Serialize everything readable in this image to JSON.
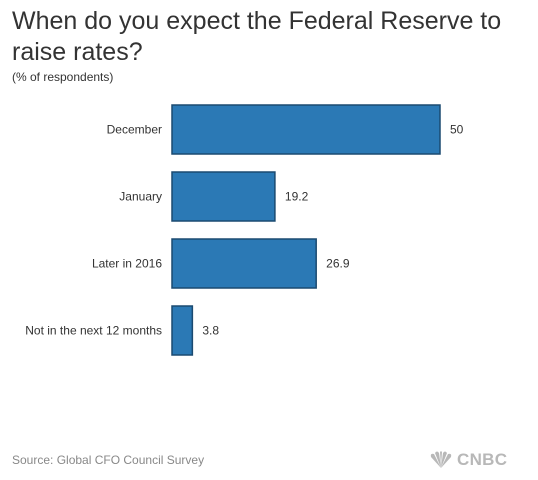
{
  "title": "When do you expect the Federal Reserve to raise rates?",
  "subtitle": "(% of respondents)",
  "source": "Source: Global CFO Council Survey",
  "logo": {
    "text": "CNBC",
    "icon": "peacock-icon"
  },
  "colors": {
    "bar": "#2b79b5",
    "bar_stroke": "#1b4a70",
    "text": "#333333",
    "muted": "#888888"
  },
  "chart_data": {
    "type": "bar",
    "orientation": "horizontal",
    "categories": [
      "December",
      "January",
      "Later in 2016",
      "Not in the next 12 months"
    ],
    "values": [
      50,
      19.2,
      26.9,
      3.8
    ],
    "value_labels": [
      "50",
      "19.2",
      "26.9",
      "3.8"
    ],
    "xlim": [
      0,
      50
    ],
    "grid": false,
    "legend": "none"
  }
}
